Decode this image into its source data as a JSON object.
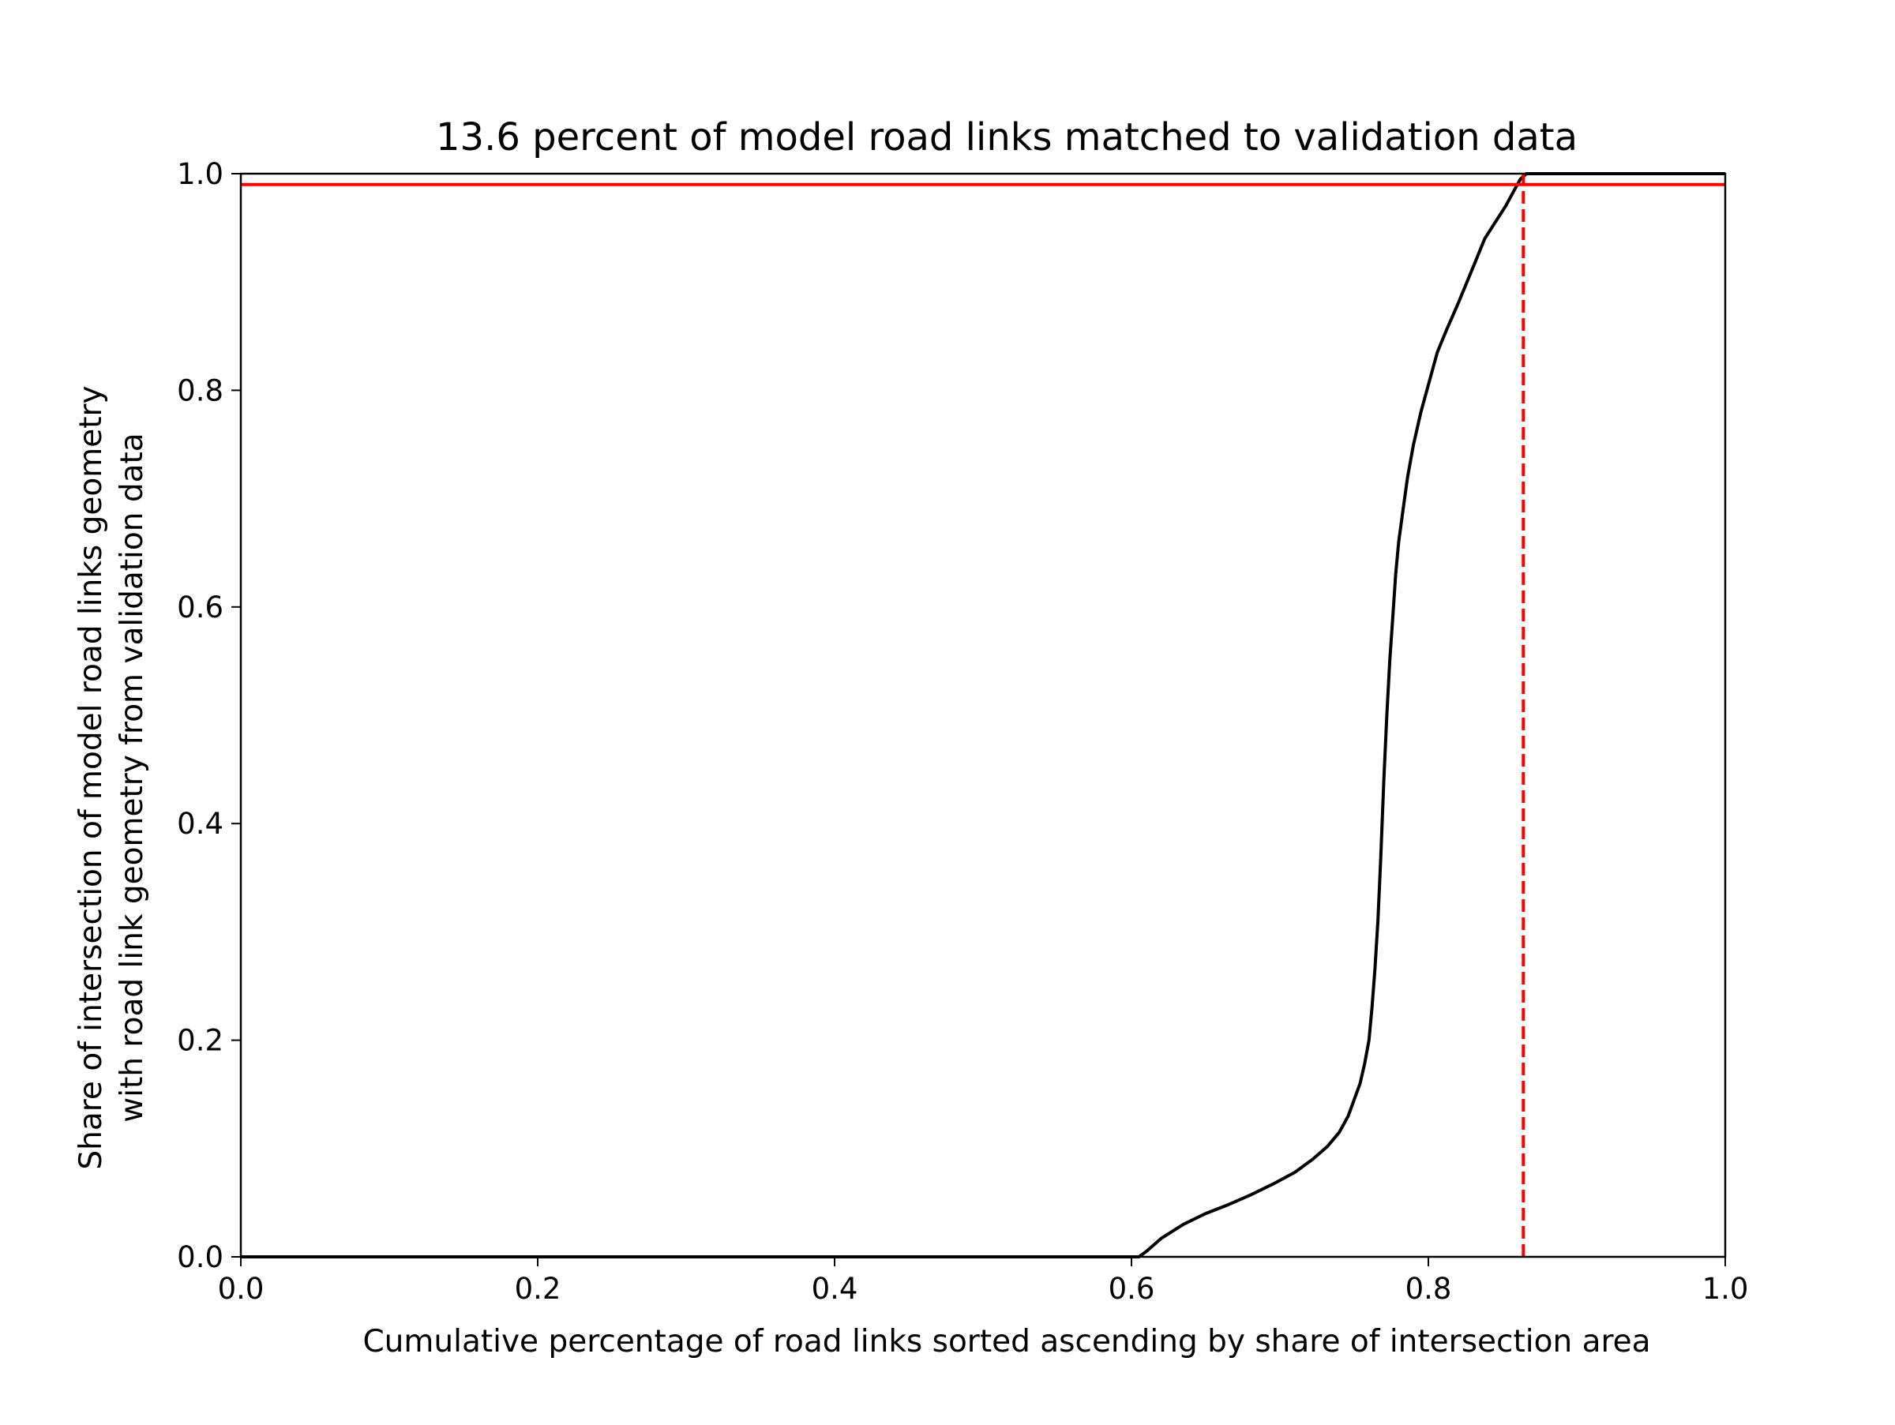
{
  "chart_data": {
    "type": "line",
    "title": "13.6 percent of model road links matched to validation data",
    "xlabel": "Cumulative percentage of road links sorted ascending by share of intersection area",
    "ylabel_lines": [
      "Share of intersection of model road links geometry",
      "with road link geometry from validation data"
    ],
    "xlim": [
      0.0,
      1.0
    ],
    "ylim": [
      0.0,
      1.0
    ],
    "xticks": [
      "0.0",
      "0.2",
      "0.4",
      "0.6",
      "0.8",
      "1.0"
    ],
    "yticks": [
      "0.0",
      "0.2",
      "0.4",
      "0.6",
      "0.8",
      "1.0"
    ],
    "grid": false,
    "legend": "none",
    "series": [
      {
        "color": "#000000",
        "style": "solid",
        "x": [
          0.0,
          0.605,
          0.61,
          0.62,
          0.635,
          0.65,
          0.665,
          0.68,
          0.695,
          0.71,
          0.722,
          0.732,
          0.74,
          0.746,
          0.75,
          0.754,
          0.757,
          0.76,
          0.762,
          0.764,
          0.766,
          0.768,
          0.77,
          0.772,
          0.774,
          0.776,
          0.778,
          0.78,
          0.783,
          0.786,
          0.79,
          0.795,
          0.8,
          0.806,
          0.812,
          0.82,
          0.826,
          0.832,
          0.838,
          0.845,
          0.852,
          0.858,
          0.862,
          0.866,
          0.9,
          1.0
        ],
        "y": [
          0.0,
          0.0,
          0.005,
          0.017,
          0.03,
          0.04,
          0.048,
          0.057,
          0.067,
          0.078,
          0.09,
          0.102,
          0.115,
          0.13,
          0.145,
          0.16,
          0.178,
          0.2,
          0.23,
          0.265,
          0.31,
          0.37,
          0.44,
          0.5,
          0.55,
          0.59,
          0.63,
          0.66,
          0.69,
          0.72,
          0.75,
          0.78,
          0.805,
          0.835,
          0.855,
          0.88,
          0.9,
          0.92,
          0.94,
          0.955,
          0.97,
          0.985,
          0.995,
          1.0,
          1.0,
          1.0
        ]
      },
      {
        "color": "#ff0000",
        "style": "solid",
        "x": [
          0.0,
          1.0
        ],
        "y": [
          0.99,
          0.99
        ]
      },
      {
        "color": "#ff0000",
        "style": "dashed",
        "x": [
          0.864,
          0.864
        ],
        "y": [
          0.0,
          1.0
        ]
      }
    ]
  }
}
